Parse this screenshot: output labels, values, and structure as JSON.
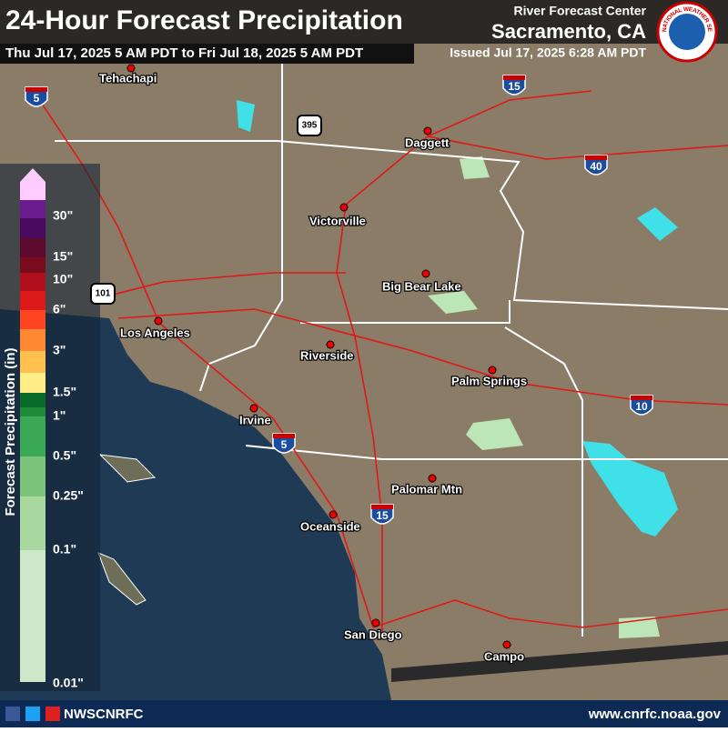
{
  "header": {
    "title": "24-Hour Forecast Precipitation",
    "period": "Thu Jul 17, 2025 5 AM PDT to Fri Jul 18, 2025 5 AM PDT",
    "center": "River Forecast Center",
    "location": "Sacramento, CA",
    "issued": "Issued Jul 17, 2025 6:28 AM PDT",
    "logo_text": "NATIONAL WEATHER SERVICE"
  },
  "legend": {
    "title": "Forecast Precipitation (in)",
    "labels": [
      "30\"",
      "15\"",
      "10\"",
      "6\"",
      "3\"",
      "1.5\"",
      "1\"",
      "0.5\"",
      "0.25\"",
      "0.1\"",
      "0.01\""
    ],
    "colors": [
      "#ffccff",
      "#6a1b8e",
      "#4a0a5e",
      "#5c0a2e",
      "#7a0a1e",
      "#b0101e",
      "#dd1a1a",
      "#ff4422",
      "#ff8833",
      "#ffc050",
      "#ffee88",
      "#0a6a2a",
      "#1e8a3a",
      "#3aa856",
      "#7cc47c",
      "#a8d8a0",
      "#cce8c8"
    ]
  },
  "map": {
    "cities": [
      "Tehachapi",
      "Daggett",
      "Victorville",
      "Big Bear Lake",
      "Los Angeles",
      "Riverside",
      "Palm Springs",
      "Irvine",
      "Palomar Mtn",
      "Oceanside",
      "San Diego",
      "Campo"
    ],
    "shields": [
      "5",
      "15",
      "395",
      "40",
      "101",
      "5",
      "10",
      "15"
    ]
  },
  "footer": {
    "social": "NWSCNRFC",
    "url": "www.cnrfc.noaa.gov"
  }
}
